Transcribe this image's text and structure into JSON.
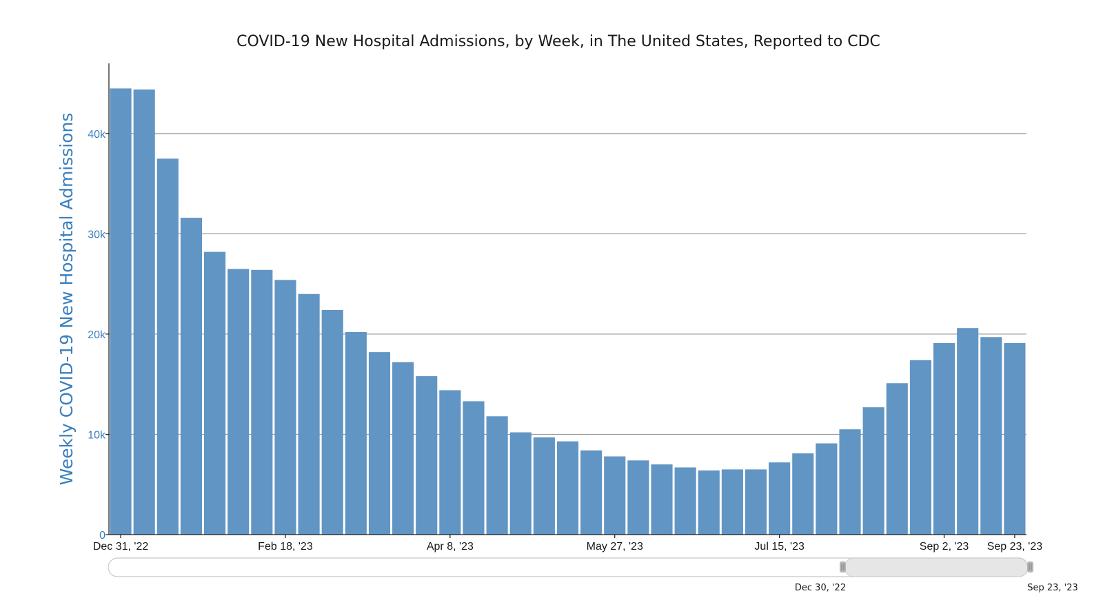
{
  "chart_data": {
    "type": "bar",
    "title": "COVID-19 New Hospital Admissions, by Week, in The United States, Reported to CDC",
    "xlabel": "",
    "ylabel": "Weekly COVID-19 New Hospital Admissions",
    "ylim": [
      0,
      47000
    ],
    "y_ticks": [
      {
        "value": 0,
        "label": "0"
      },
      {
        "value": 10000,
        "label": "10k"
      },
      {
        "value": 20000,
        "label": "20k"
      },
      {
        "value": 30000,
        "label": "30k"
      },
      {
        "value": 40000,
        "label": "40k"
      }
    ],
    "x_ticks": [
      {
        "index": 0,
        "label": "Dec 31, '22"
      },
      {
        "index": 7,
        "label": "Feb 18, '23"
      },
      {
        "index": 14,
        "label": "Apr 8, '23"
      },
      {
        "index": 21,
        "label": "May 27, '23"
      },
      {
        "index": 28,
        "label": "Jul 15, '23"
      },
      {
        "index": 35,
        "label": "Sep 2, '23"
      },
      {
        "index": 38,
        "label": "Sep 23, '23"
      }
    ],
    "categories": [
      "2022-12-31",
      "2023-01-07",
      "2023-01-14",
      "2023-01-21",
      "2023-01-28",
      "2023-02-04",
      "2023-02-11",
      "2023-02-18",
      "2023-02-25",
      "2023-03-04",
      "2023-03-11",
      "2023-03-18",
      "2023-03-25",
      "2023-04-01",
      "2023-04-08",
      "2023-04-15",
      "2023-04-22",
      "2023-04-29",
      "2023-05-06",
      "2023-05-13",
      "2023-05-20",
      "2023-05-27",
      "2023-06-03",
      "2023-06-10",
      "2023-06-17",
      "2023-06-24",
      "2023-07-01",
      "2023-07-08",
      "2023-07-15",
      "2023-07-22",
      "2023-07-29",
      "2023-08-05",
      "2023-08-12",
      "2023-08-19",
      "2023-08-26",
      "2023-09-02",
      "2023-09-09",
      "2023-09-16",
      "2023-09-23"
    ],
    "values": [
      44500,
      44400,
      37500,
      31600,
      28200,
      26500,
      26400,
      25400,
      24000,
      22400,
      20200,
      18200,
      17200,
      15800,
      14400,
      13300,
      11800,
      10200,
      9700,
      9300,
      8400,
      7800,
      7400,
      7000,
      6700,
      6400,
      6500,
      6500,
      7200,
      8100,
      9100,
      10500,
      12700,
      15100,
      17400,
      19100,
      20600,
      19700,
      19100
    ],
    "bar_color": "#6195c3",
    "grid": true,
    "range_slider": {
      "start_label": "Dec 30, '22",
      "end_label": "Sep 23, '23"
    }
  }
}
